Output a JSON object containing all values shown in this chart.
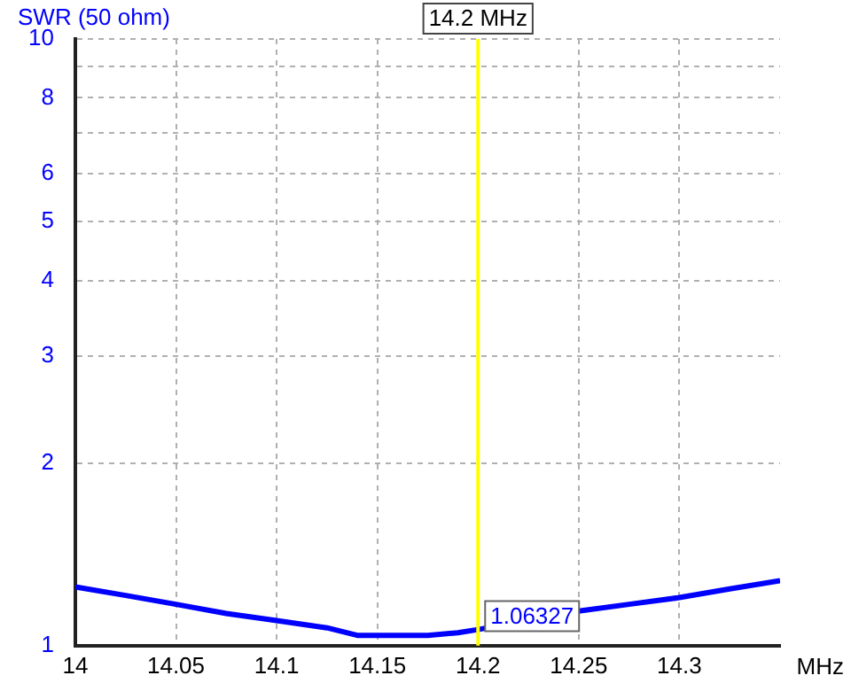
{
  "chart_data": {
    "type": "line",
    "ylabel": "SWR (50 ohm)",
    "xlabel": "MHz",
    "x": [
      14,
      14.025,
      14.05,
      14.075,
      14.1,
      14.125,
      14.14,
      14.15,
      14.175,
      14.19,
      14.2,
      14.25,
      14.275,
      14.3,
      14.325,
      14.35
    ],
    "series": [
      {
        "color": "#0000ff",
        "values": [
          1.25,
          1.21,
          1.17,
          1.13,
          1.1,
          1.07,
          1.04,
          1.04,
          1.04,
          1.05,
          1.063,
          1.14,
          1.17,
          1.2,
          1.24,
          1.28
        ]
      }
    ],
    "xlim": [
      14,
      14.35
    ],
    "xticks": [
      14,
      14.05,
      14.1,
      14.15,
      14.2,
      14.25,
      14.3
    ],
    "ylim": [
      1,
      10
    ],
    "yticks": [
      1,
      2,
      3,
      4,
      5,
      6,
      {
        "value": 7,
        "label": null
      },
      8,
      {
        "value": 9,
        "label": null
      },
      10
    ],
    "log": "y",
    "grid": true,
    "legend": false,
    "marker": "none",
    "line_style": "solid",
    "ref_lines": [
      {
        "axis": "x",
        "value": 14.2,
        "label": "14.2 MHz",
        "color": "#ffff00"
      }
    ],
    "annotations": [
      {
        "text": "1.06327",
        "x": 14.2,
        "y": 1.06327
      }
    ]
  }
}
